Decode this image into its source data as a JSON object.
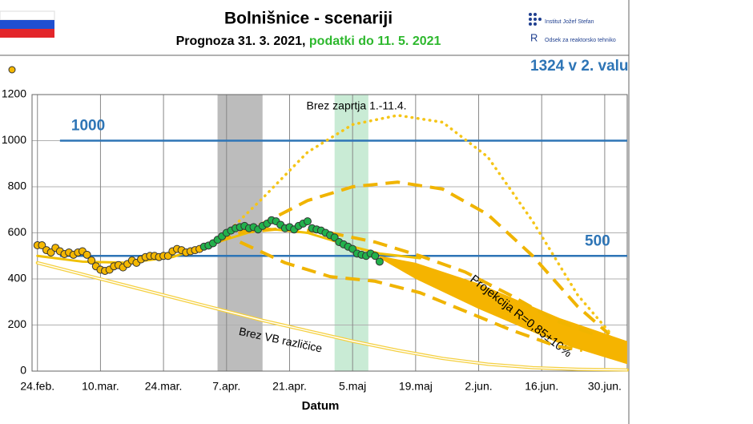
{
  "chart_data": {
    "type": "line",
    "title": "Bolnišnice - scenariji",
    "subtitle": [
      "Prognoza 31. 3. 2021,",
      "podatki do 11. 5. 2021"
    ],
    "logos": [
      "Institut Jožef Stefan",
      "Odsek za reaktorsko tehniko"
    ],
    "note": "1324 v 2. valu",
    "x_label": "Datum",
    "xlim": [
      -1.2,
      131
    ],
    "xticks": [
      {
        "value": 0,
        "label": "24.feb."
      },
      {
        "value": 14,
        "label": "10.mar."
      },
      {
        "value": 28,
        "label": "24.mar."
      },
      {
        "value": 42,
        "label": "7.apr."
      },
      {
        "value": 56,
        "label": "21.apr."
      },
      {
        "value": 70,
        "label": "5.maj"
      },
      {
        "value": 84,
        "label": "19.maj"
      },
      {
        "value": 98,
        "label": "2.jun."
      },
      {
        "value": 112,
        "label": "16.jun."
      },
      {
        "value": 126,
        "label": "30.jun."
      }
    ],
    "ylim": [
      0,
      1200
    ],
    "yticks": [
      0,
      200,
      400,
      600,
      800,
      1000,
      1200
    ],
    "grid": true,
    "hlines": [
      {
        "value": 1000,
        "label": "1000",
        "color": "#2e75b6"
      },
      {
        "value": 500,
        "label": "500",
        "color": "#2e75b6"
      }
    ],
    "shaded_regions": [
      {
        "x": [
          40,
          50
        ],
        "color": "#a6a6a6"
      },
      {
        "x": [
          66,
          73.5
        ],
        "color": "#b7e4c7"
      }
    ],
    "series": [
      {
        "style": "points",
        "color": "#f5b800",
        "x": [
          0,
          1,
          2,
          3,
          4,
          5,
          6,
          7,
          8,
          9,
          10,
          11,
          12,
          13,
          14,
          15,
          16,
          17,
          18,
          19,
          20,
          21,
          22,
          23,
          24,
          25,
          26,
          27,
          28,
          29,
          30,
          31,
          32,
          33,
          34,
          35,
          36
        ],
        "values": [
          546,
          546,
          525,
          515,
          535,
          520,
          508,
          515,
          505,
          515,
          520,
          505,
          480,
          455,
          440,
          435,
          440,
          455,
          460,
          450,
          465,
          480,
          470,
          485,
          495,
          500,
          500,
          495,
          500,
          500,
          520,
          530,
          525,
          515,
          520,
          525,
          530
        ]
      },
      {
        "style": "points",
        "color": "#22b14c",
        "x": [
          37,
          38,
          39,
          40,
          41,
          42,
          43,
          44,
          45,
          46,
          47,
          48,
          49,
          50,
          51,
          52,
          53,
          54,
          55,
          56,
          57,
          58,
          59,
          60,
          61,
          62,
          63,
          64,
          65,
          66,
          67,
          68,
          69,
          70,
          71,
          72,
          73,
          74,
          75,
          76
        ],
        "values": [
          540,
          545,
          555,
          570,
          585,
          600,
          610,
          620,
          625,
          630,
          620,
          625,
          615,
          630,
          640,
          655,
          650,
          635,
          620,
          625,
          615,
          630,
          640,
          650,
          620,
          615,
          610,
          600,
          590,
          580,
          560,
          550,
          540,
          530,
          510,
          505,
          500,
          510,
          500,
          475
        ]
      },
      {
        "style": "band",
        "color": "#f5b400",
        "name": "Projekcija R=0,85±10%",
        "x": [
          76,
          84,
          98,
          116,
          131
        ],
        "high": [
          500,
          470,
          380,
          230,
          130
        ],
        "low": [
          490,
          400,
          270,
          120,
          30
        ]
      },
      {
        "style": "dotted",
        "color": "#f5c518",
        "name": "Brez zaprtja 1.-11.4.",
        "x": [
          40,
          50,
          60,
          70,
          80,
          90,
          100,
          110,
          120,
          127
        ],
        "values": [
          560,
          750,
          950,
          1070,
          1110,
          1080,
          930,
          650,
          330,
          170
        ]
      },
      {
        "style": "dashed",
        "color": "#f0b400",
        "x": [
          40,
          50,
          60,
          70,
          80,
          90,
          100,
          110,
          120,
          127
        ],
        "values": [
          560,
          640,
          740,
          800,
          820,
          790,
          680,
          500,
          280,
          160
        ]
      },
      {
        "style": "dashed",
        "color": "#f0b400",
        "x": [
          45,
          55,
          65,
          75,
          85,
          95,
          105,
          115,
          125
        ],
        "values": [
          600,
          620,
          600,
          560,
          500,
          430,
          330,
          220,
          150
        ]
      },
      {
        "style": "dashed",
        "color": "#f0b400",
        "x": [
          45,
          55,
          65,
          75,
          85,
          95,
          105,
          115,
          121
        ],
        "values": [
          560,
          470,
          410,
          390,
          340,
          260,
          180,
          110,
          90
        ]
      },
      {
        "style": "solid",
        "color": "#f0c000",
        "x": [
          0,
          10,
          20,
          30,
          40,
          50,
          60,
          70,
          76,
          85
        ],
        "values": [
          500,
          475,
          470,
          495,
          560,
          620,
          600,
          540,
          510,
          490
        ]
      },
      {
        "style": "double",
        "color": "#f5d040",
        "name": "Brez VB različice",
        "x": [
          0,
          10,
          20,
          30,
          40,
          50,
          60,
          70,
          80,
          90,
          100,
          110,
          120,
          131
        ],
        "values": [
          470,
          420,
          370,
          320,
          270,
          220,
          175,
          130,
          90,
          55,
          30,
          15,
          8,
          5
        ]
      }
    ]
  }
}
